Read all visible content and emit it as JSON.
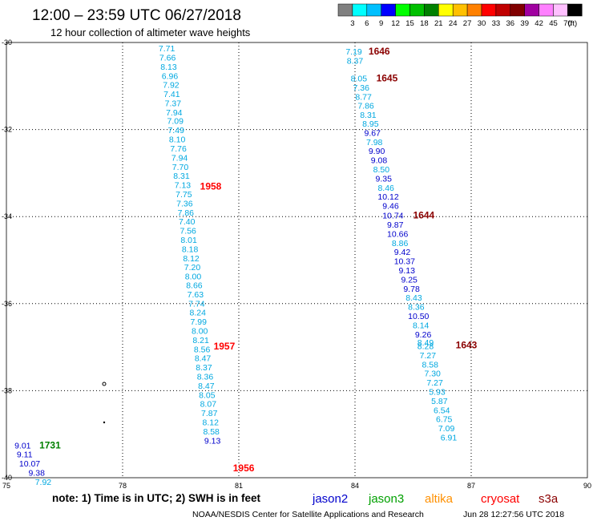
{
  "header": {
    "title": "12:00 – 23:59 UTC 06/27/2018",
    "subtitle": "12 hour collection of altimeter wave heights"
  },
  "legend": {
    "colors": [
      "#808080",
      "#00ffff",
      "#00c0ff",
      "#0000ff",
      "#00ff00",
      "#00c000",
      "#008000",
      "#ffff00",
      "#ffc000",
      "#ff8000",
      "#ff0000",
      "#c00000",
      "#800000",
      "#a000a0",
      "#ff80ff",
      "#ffc0ff",
      "#000000"
    ],
    "labels": [
      "3",
      "6",
      "9",
      "12",
      "15",
      "18",
      "21",
      "24",
      "27",
      "30",
      "33",
      "36",
      "39",
      "42",
      "45",
      "70",
      "(ft)"
    ]
  },
  "footer": {
    "note": "note: 1) Time is in UTC; 2) SWH is in feet",
    "satellites": [
      {
        "name": "jason2",
        "color": "#0000cc"
      },
      {
        "name": "jason3",
        "color": "#00a000"
      },
      {
        "name": "altika",
        "color": "#ff9000"
      },
      {
        "name": "cryosat",
        "color": "#ff0000"
      },
      {
        "name": "s3a",
        "color": "#8b0000"
      }
    ],
    "credit": "NOAA/NESDIS Center for Satellite Applications and Research",
    "timestamp": "Jun 28 12:27:56 UTC 2018"
  },
  "chart_data": {
    "type": "scatter",
    "xlim": [
      75,
      90
    ],
    "ylim": [
      -40,
      -30
    ],
    "x_ticks": [
      "75",
      "78",
      "81",
      "84",
      "87",
      "90"
    ],
    "y_ticks": [
      "-30",
      "-32",
      "-34",
      "-36",
      "-38",
      "-40"
    ],
    "grid": true,
    "value_colors": {
      "6-9": "#00a8e0",
      "9-12": "#0000cc"
    },
    "tracks": [
      {
        "satellite": "cryosat",
        "time_label": "1958",
        "label_color": "#ff0000",
        "label_lon": 80.0,
        "label_lat": -33.31,
        "points": [
          {
            "lon": 79.14,
            "lat": -30.13,
            "v": "7.71"
          },
          {
            "lon": 79.16,
            "lat": -30.34,
            "v": "7.66"
          },
          {
            "lon": 79.19,
            "lat": -30.55,
            "v": "8.13"
          },
          {
            "lon": 79.22,
            "lat": -30.76,
            "v": "6.96"
          },
          {
            "lon": 79.25,
            "lat": -30.97,
            "v": "7.92"
          },
          {
            "lon": 79.27,
            "lat": -31.18,
            "v": "7.41"
          },
          {
            "lon": 79.3,
            "lat": -31.39,
            "v": "7.37"
          },
          {
            "lon": 79.33,
            "lat": -31.6,
            "v": "7.94"
          },
          {
            "lon": 79.36,
            "lat": -31.8,
            "v": "7.09"
          },
          {
            "lon": 79.38,
            "lat": -32.01,
            "v": "7.49"
          },
          {
            "lon": 79.41,
            "lat": -32.22,
            "v": "8.10"
          },
          {
            "lon": 79.44,
            "lat": -32.43,
            "v": "7.76"
          },
          {
            "lon": 79.47,
            "lat": -32.64,
            "v": "7.94"
          },
          {
            "lon": 79.49,
            "lat": -32.85,
            "v": "7.70"
          },
          {
            "lon": 79.52,
            "lat": -33.06,
            "v": "8.31"
          },
          {
            "lon": 79.55,
            "lat": -33.27,
            "v": "7.13"
          },
          {
            "lon": 79.58,
            "lat": -33.48,
            "v": "7.75"
          },
          {
            "lon": 79.6,
            "lat": -33.69,
            "v": "7.36"
          },
          {
            "lon": 79.63,
            "lat": -33.9,
            "v": "7.86"
          },
          {
            "lon": 79.66,
            "lat": -34.11,
            "v": "7.40"
          },
          {
            "lon": 79.69,
            "lat": -34.32,
            "v": "7.56"
          },
          {
            "lon": 79.71,
            "lat": -34.53,
            "v": "8.01"
          },
          {
            "lon": 79.74,
            "lat": -34.74,
            "v": "8.18"
          },
          {
            "lon": 79.77,
            "lat": -34.95,
            "v": "8.12"
          },
          {
            "lon": 79.8,
            "lat": -35.16,
            "v": "7.20"
          },
          {
            "lon": 79.82,
            "lat": -35.37,
            "v": "8.00"
          },
          {
            "lon": 79.85,
            "lat": -35.57,
            "v": "8.66"
          }
        ]
      },
      {
        "satellite": "cryosat",
        "time_label": "1957",
        "label_color": "#ff0000",
        "label_lon": 80.35,
        "label_lat": -36.98,
        "points": [
          {
            "lon": 79.88,
            "lat": -35.78,
            "v": "7.63"
          },
          {
            "lon": 79.91,
            "lat": -35.99,
            "v": "7.74"
          },
          {
            "lon": 79.94,
            "lat": -36.2,
            "v": "8.24"
          },
          {
            "lon": 79.96,
            "lat": -36.41,
            "v": "7.99"
          },
          {
            "lon": 79.99,
            "lat": -36.62,
            "v": "8.00"
          },
          {
            "lon": 80.02,
            "lat": -36.83,
            "v": "8.21"
          },
          {
            "lon": 80.05,
            "lat": -37.04,
            "v": "8.56"
          },
          {
            "lon": 80.07,
            "lat": -37.25,
            "v": "8.47"
          },
          {
            "lon": 80.1,
            "lat": -37.46,
            "v": "8.37"
          },
          {
            "lon": 80.13,
            "lat": -37.67,
            "v": "8.36"
          },
          {
            "lon": 80.16,
            "lat": -37.88,
            "v": "8.47"
          },
          {
            "lon": 80.18,
            "lat": -38.09,
            "v": "8.05"
          },
          {
            "lon": 80.21,
            "lat": -38.3,
            "v": "8.07"
          },
          {
            "lon": 80.24,
            "lat": -38.51,
            "v": "7.87"
          },
          {
            "lon": 80.27,
            "lat": -38.72,
            "v": "8.12"
          },
          {
            "lon": 80.29,
            "lat": -38.93,
            "v": "8.58"
          },
          {
            "lon": 80.32,
            "lat": -39.14,
            "v": "9.13"
          }
        ]
      },
      {
        "satellite": "cryosat",
        "time_label": "1956",
        "label_color": "#ff0000",
        "label_lon": 80.85,
        "label_lat": -39.78,
        "points": []
      },
      {
        "satellite": "s3a",
        "time_label": "1646",
        "label_color": "#8b0000",
        "label_lon": 84.35,
        "label_lat": -30.2,
        "points": [
          {
            "lon": 83.97,
            "lat": -30.2,
            "v": "7.19"
          },
          {
            "lon": 84.0,
            "lat": -30.41,
            "v": "8.37"
          }
        ]
      },
      {
        "satellite": "s3a",
        "time_label": "1645",
        "label_color": "#8b0000",
        "label_lon": 84.55,
        "label_lat": -30.82,
        "points": [
          {
            "lon": 84.1,
            "lat": -30.82,
            "v": "8.05"
          },
          {
            "lon": 84.16,
            "lat": -31.03,
            "v": "7.36"
          },
          {
            "lon": 84.22,
            "lat": -31.24,
            "v": "8.77"
          },
          {
            "lon": 84.28,
            "lat": -31.45,
            "v": "7.86"
          },
          {
            "lon": 84.34,
            "lat": -31.66,
            "v": "8.31"
          },
          {
            "lon": 84.4,
            "lat": -31.86,
            "v": "8.95"
          },
          {
            "lon": 84.45,
            "lat": -32.07,
            "v": "9.67"
          },
          {
            "lon": 84.5,
            "lat": -32.28,
            "v": "7.98"
          },
          {
            "lon": 84.56,
            "lat": -32.49,
            "v": "9.90"
          },
          {
            "lon": 84.62,
            "lat": -32.7,
            "v": "9.08"
          },
          {
            "lon": 84.68,
            "lat": -32.91,
            "v": "8.50"
          },
          {
            "lon": 84.74,
            "lat": -33.12,
            "v": "9.35"
          },
          {
            "lon": 84.8,
            "lat": -33.33,
            "v": "8.46"
          },
          {
            "lon": 84.86,
            "lat": -33.54,
            "v": "10.12"
          },
          {
            "lon": 84.92,
            "lat": -33.75,
            "v": "9.46"
          }
        ]
      },
      {
        "satellite": "s3a",
        "time_label": "1644",
        "label_color": "#8b0000",
        "label_lon": 85.5,
        "label_lat": -33.97,
        "points": [
          {
            "lon": 84.98,
            "lat": -33.97,
            "v": "10.74"
          },
          {
            "lon": 85.04,
            "lat": -34.18,
            "v": "9.87"
          },
          {
            "lon": 85.1,
            "lat": -34.39,
            "v": "10.66"
          },
          {
            "lon": 85.16,
            "lat": -34.6,
            "v": "8.86"
          },
          {
            "lon": 85.22,
            "lat": -34.81,
            "v": "9.42"
          },
          {
            "lon": 85.28,
            "lat": -35.02,
            "v": "10.37"
          },
          {
            "lon": 85.34,
            "lat": -35.23,
            "v": "9.13"
          },
          {
            "lon": 85.4,
            "lat": -35.44,
            "v": "9.25"
          },
          {
            "lon": 85.46,
            "lat": -35.65,
            "v": "9.78"
          },
          {
            "lon": 85.52,
            "lat": -35.86,
            "v": "8.43"
          },
          {
            "lon": 85.58,
            "lat": -36.07,
            "v": "8.36"
          },
          {
            "lon": 85.64,
            "lat": -36.28,
            "v": "10.50"
          },
          {
            "lon": 85.7,
            "lat": -36.49,
            "v": "8.14"
          },
          {
            "lon": 85.76,
            "lat": -36.7,
            "v": "9.26"
          },
          {
            "lon": 85.82,
            "lat": -36.89,
            "v": "8.49"
          }
        ]
      },
      {
        "satellite": "s3a",
        "time_label": "1643",
        "label_color": "#8b0000",
        "label_lon": 86.6,
        "label_lat": -36.95,
        "points": [
          {
            "lon": 85.82,
            "lat": -36.97,
            "v": "8.28"
          },
          {
            "lon": 85.88,
            "lat": -37.18,
            "v": "7.27"
          },
          {
            "lon": 85.94,
            "lat": -37.39,
            "v": "8.58"
          },
          {
            "lon": 86.0,
            "lat": -37.6,
            "v": "7.30"
          },
          {
            "lon": 86.06,
            "lat": -37.81,
            "v": "7.27"
          },
          {
            "lon": 86.12,
            "lat": -38.02,
            "v": "5.93"
          },
          {
            "lon": 86.18,
            "lat": -38.23,
            "v": "5.87"
          },
          {
            "lon": 86.24,
            "lat": -38.44,
            "v": "6.54"
          },
          {
            "lon": 86.3,
            "lat": -38.65,
            "v": "6.75"
          },
          {
            "lon": 86.36,
            "lat": -38.86,
            "v": "7.09"
          },
          {
            "lon": 86.42,
            "lat": -39.07,
            "v": "6.91"
          }
        ]
      },
      {
        "satellite": "jason3",
        "time_label": "1731",
        "label_color": "#008000",
        "label_lon": 75.85,
        "label_lat": -39.25,
        "points": [
          {
            "lon": 75.42,
            "lat": -39.25,
            "v": "9.01"
          },
          {
            "lon": 75.47,
            "lat": -39.46,
            "v": "9.11"
          },
          {
            "lon": 75.6,
            "lat": -39.67,
            "v": "10.07"
          },
          {
            "lon": 75.78,
            "lat": -39.88,
            "v": "9.38"
          },
          {
            "lon": 75.95,
            "lat": -40.09,
            "v": "7.92"
          }
        ]
      }
    ]
  }
}
